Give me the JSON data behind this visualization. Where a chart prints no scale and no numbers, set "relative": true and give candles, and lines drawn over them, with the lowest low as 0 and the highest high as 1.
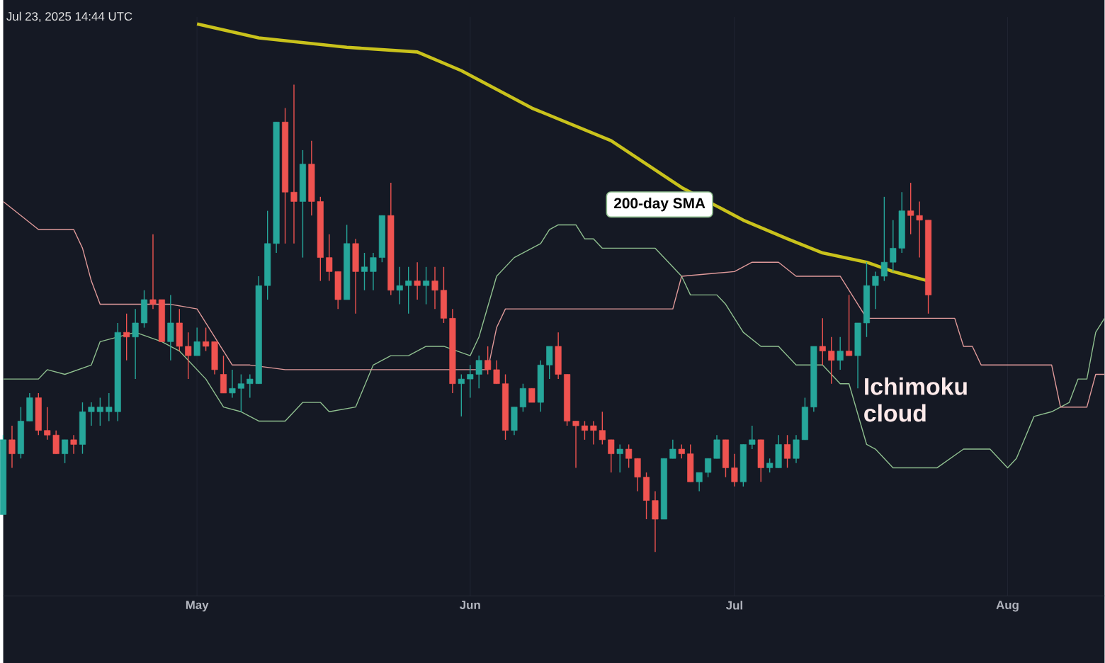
{
  "chart_data": {
    "type": "candlestick",
    "relative": true,
    "tick_labels": "x",
    "grid": "x",
    "xlim": [
      "2025-04-09",
      "2025-08-12"
    ],
    "xticks": [
      {
        "value": "2025-05-01",
        "label": "May"
      },
      {
        "value": "2025-06-01",
        "label": "Jun"
      },
      {
        "value": "2025-07-01",
        "label": "Jul"
      },
      {
        "value": "2025-08-01",
        "label": "Aug"
      }
    ],
    "colors": [
      "#26a69a",
      "#ef5350",
      "#26a69a",
      "#26a69a",
      "#ef5350",
      "#ef5350",
      "#ef5350",
      "#26a69a",
      "#ef5350",
      "#26a69a",
      "#26a69a",
      "#26a69a",
      "#26a69a",
      "#26a69a",
      "#ef5350",
      "#26a69a",
      "#26a69a",
      "#ef5350",
      "#ef5350",
      "#26a69a",
      "#ef5350",
      "#ef5350",
      "#26a69a",
      "#ef5350",
      "#ef5350",
      "#ef5350",
      "#26a69a",
      "#26a69a",
      "#26a69a",
      "#26a69a",
      "#26a69a",
      "#26a69a",
      "#ef5350",
      "#ef5350",
      "#26a69a",
      "#ef5350",
      "#ef5350",
      "#ef5350",
      "#ef5350",
      "#26a69a",
      "#ef5350",
      "#26a69a",
      "#26a69a",
      "#26a69a",
      "#ef5350",
      "#26a69a",
      "#26a69a",
      "#ef5350",
      "#26a69a",
      "#ef5350",
      "#ef5350",
      "#ef5350",
      "#26a69a",
      "#26a69a",
      "#26a69a",
      "#ef5350",
      "#ef5350",
      "#ef5350",
      "#26a69a",
      "#26a69a",
      "#ef5350",
      "#26a69a",
      "#26a69a",
      "#ef5350",
      "#ef5350",
      "#ef5350",
      "#ef5350",
      "#ef5350",
      "#ef5350",
      "#ef5350",
      "#26a69a",
      "#ef5350",
      "#ef5350",
      "#ef5350",
      "#ef5350",
      "#26a69a",
      "#26a69a",
      "#ef5350",
      "#ef5350",
      "#26a69a",
      "#26a69a",
      "#26a69a",
      "#ef5350",
      "#ef5350",
      "#26a69a",
      "#26a69a",
      "#ef5350",
      "#26a69a",
      "#26a69a",
      "#ef5350",
      "#26a69a",
      "#26a69a",
      "#26a69a",
      "#ef5350",
      "#ef5350",
      "#26a69a",
      "#ef5350",
      "#26a69a",
      "#26a69a",
      "#26a69a",
      "#26a69a",
      "#26a69a",
      "#26a69a",
      "#ef5350",
      "#ef5350",
      "#ef5350"
    ],
    "x": [
      "2025-04-09",
      "2025-04-10",
      "2025-04-11",
      "2025-04-12",
      "2025-04-13",
      "2025-04-14",
      "2025-04-15",
      "2025-04-16",
      "2025-04-17",
      "2025-04-18",
      "2025-04-19",
      "2025-04-20",
      "2025-04-21",
      "2025-04-22",
      "2025-04-23",
      "2025-04-24",
      "2025-04-25",
      "2025-04-26",
      "2025-04-27",
      "2025-04-28",
      "2025-04-29",
      "2025-04-30",
      "2025-05-01",
      "2025-05-02",
      "2025-05-03",
      "2025-05-04",
      "2025-05-05",
      "2025-05-06",
      "2025-05-07",
      "2025-05-08",
      "2025-05-09",
      "2025-05-10",
      "2025-05-11",
      "2025-05-12",
      "2025-05-13",
      "2025-05-14",
      "2025-05-15",
      "2025-05-16",
      "2025-05-17",
      "2025-05-18",
      "2025-05-19",
      "2025-05-20",
      "2025-05-21",
      "2025-05-22",
      "2025-05-23",
      "2025-05-24",
      "2025-05-25",
      "2025-05-26",
      "2025-05-27",
      "2025-05-28",
      "2025-05-29",
      "2025-05-30",
      "2025-05-31",
      "2025-06-01",
      "2025-06-02",
      "2025-06-03",
      "2025-06-04",
      "2025-06-05",
      "2025-06-06",
      "2025-06-07",
      "2025-06-08",
      "2025-06-09",
      "2025-06-10",
      "2025-06-11",
      "2025-06-12",
      "2025-06-13",
      "2025-06-14",
      "2025-06-15",
      "2025-06-16",
      "2025-06-17",
      "2025-06-18",
      "2025-06-19",
      "2025-06-20",
      "2025-06-21",
      "2025-06-22",
      "2025-06-23",
      "2025-06-24",
      "2025-06-25",
      "2025-06-26",
      "2025-06-27",
      "2025-06-28",
      "2025-06-29",
      "2025-06-30",
      "2025-07-01",
      "2025-07-02",
      "2025-07-03",
      "2025-07-04",
      "2025-07-05",
      "2025-07-06",
      "2025-07-07",
      "2025-07-08",
      "2025-07-09",
      "2025-07-10",
      "2025-07-11",
      "2025-07-12",
      "2025-07-13",
      "2025-07-14",
      "2025-07-15",
      "2025-07-16",
      "2025-07-17",
      "2025-07-18",
      "2025-07-19",
      "2025-07-20",
      "2025-07-21",
      "2025-07-22",
      "2025-07-23"
    ],
    "ohlc": [
      [
        0.08,
        0.25,
        0.08,
        0.24
      ],
      [
        0.24,
        0.27,
        0.18,
        0.21
      ],
      [
        0.21,
        0.31,
        0.2,
        0.28
      ],
      [
        0.28,
        0.34,
        0.28,
        0.33
      ],
      [
        0.33,
        0.34,
        0.25,
        0.26
      ],
      [
        0.26,
        0.31,
        0.24,
        0.25
      ],
      [
        0.25,
        0.26,
        0.21,
        0.21
      ],
      [
        0.21,
        0.24,
        0.19,
        0.24
      ],
      [
        0.24,
        0.25,
        0.21,
        0.23
      ],
      [
        0.23,
        0.32,
        0.21,
        0.3
      ],
      [
        0.3,
        0.32,
        0.27,
        0.31
      ],
      [
        0.3,
        0.33,
        0.27,
        0.31
      ],
      [
        0.3,
        0.34,
        0.28,
        0.31
      ],
      [
        0.3,
        0.49,
        0.28,
        0.47
      ],
      [
        0.47,
        0.51,
        0.41,
        0.46
      ],
      [
        0.46,
        0.52,
        0.37,
        0.49
      ],
      [
        0.49,
        0.56,
        0.48,
        0.54
      ],
      [
        0.54,
        0.68,
        0.52,
        0.53
      ],
      [
        0.54,
        0.54,
        0.45,
        0.45
      ],
      [
        0.45,
        0.55,
        0.41,
        0.49
      ],
      [
        0.49,
        0.52,
        0.43,
        0.44
      ],
      [
        0.44,
        0.47,
        0.37,
        0.42
      ],
      [
        0.42,
        0.48,
        0.42,
        0.45
      ],
      [
        0.45,
        0.48,
        0.43,
        0.44
      ],
      [
        0.45,
        0.45,
        0.38,
        0.39
      ],
      [
        0.38,
        0.42,
        0.34,
        0.34
      ],
      [
        0.34,
        0.39,
        0.33,
        0.35
      ],
      [
        0.35,
        0.38,
        0.3,
        0.36
      ],
      [
        0.36,
        0.38,
        0.33,
        0.37
      ],
      [
        0.36,
        0.59,
        0.36,
        0.57
      ],
      [
        0.57,
        0.73,
        0.54,
        0.66
      ],
      [
        0.66,
        0.92,
        0.64,
        0.92
      ],
      [
        0.92,
        0.95,
        0.66,
        0.77
      ],
      [
        0.77,
        1.0,
        0.66,
        0.75
      ],
      [
        0.75,
        0.86,
        0.63,
        0.83
      ],
      [
        0.83,
        0.88,
        0.72,
        0.75
      ],
      [
        0.75,
        0.76,
        0.58,
        0.63
      ],
      [
        0.63,
        0.68,
        0.58,
        0.6
      ],
      [
        0.6,
        0.6,
        0.52,
        0.54
      ],
      [
        0.54,
        0.7,
        0.54,
        0.66
      ],
      [
        0.66,
        0.67,
        0.51,
        0.6
      ],
      [
        0.6,
        0.64,
        0.56,
        0.61
      ],
      [
        0.6,
        0.64,
        0.56,
        0.63
      ],
      [
        0.63,
        0.72,
        0.62,
        0.72
      ],
      [
        0.72,
        0.79,
        0.55,
        0.56
      ],
      [
        0.56,
        0.61,
        0.53,
        0.57
      ],
      [
        0.57,
        0.61,
        0.51,
        0.58
      ],
      [
        0.58,
        0.62,
        0.54,
        0.57
      ],
      [
        0.57,
        0.61,
        0.53,
        0.58
      ],
      [
        0.58,
        0.61,
        0.52,
        0.56
      ],
      [
        0.56,
        0.61,
        0.49,
        0.5
      ],
      [
        0.5,
        0.52,
        0.34,
        0.36
      ],
      [
        0.36,
        0.38,
        0.29,
        0.37
      ],
      [
        0.37,
        0.4,
        0.33,
        0.38
      ],
      [
        0.38,
        0.42,
        0.35,
        0.41
      ],
      [
        0.41,
        0.44,
        0.38,
        0.39
      ],
      [
        0.39,
        0.41,
        0.36,
        0.36
      ],
      [
        0.36,
        0.38,
        0.24,
        0.26
      ],
      [
        0.26,
        0.31,
        0.25,
        0.31
      ],
      [
        0.31,
        0.36,
        0.3,
        0.35
      ],
      [
        0.35,
        0.35,
        0.32,
        0.32
      ],
      [
        0.32,
        0.41,
        0.3,
        0.4
      ],
      [
        0.4,
        0.44,
        0.37,
        0.44
      ],
      [
        0.44,
        0.47,
        0.37,
        0.38
      ],
      [
        0.38,
        0.38,
        0.27,
        0.28
      ],
      [
        0.28,
        0.28,
        0.18,
        0.27
      ],
      [
        0.27,
        0.28,
        0.24,
        0.26
      ],
      [
        0.27,
        0.28,
        0.23,
        0.26
      ],
      [
        0.26,
        0.3,
        0.23,
        0.24
      ],
      [
        0.24,
        0.24,
        0.17,
        0.21
      ],
      [
        0.21,
        0.23,
        0.17,
        0.22
      ],
      [
        0.22,
        0.23,
        0.18,
        0.2
      ],
      [
        0.2,
        0.2,
        0.13,
        0.16
      ],
      [
        0.16,
        0.17,
        0.07,
        0.11
      ],
      [
        0.11,
        0.13,
        0.0,
        0.07
      ],
      [
        0.07,
        0.2,
        0.07,
        0.2
      ],
      [
        0.2,
        0.24,
        0.2,
        0.22
      ],
      [
        0.22,
        0.23,
        0.2,
        0.21
      ],
      [
        0.21,
        0.23,
        0.15,
        0.15
      ],
      [
        0.15,
        0.17,
        0.13,
        0.17
      ],
      [
        0.17,
        0.2,
        0.16,
        0.2
      ],
      [
        0.2,
        0.25,
        0.2,
        0.24
      ],
      [
        0.24,
        0.24,
        0.16,
        0.18
      ],
      [
        0.18,
        0.21,
        0.14,
        0.15
      ],
      [
        0.15,
        0.23,
        0.14,
        0.23
      ],
      [
        0.23,
        0.27,
        0.22,
        0.24
      ],
      [
        0.24,
        0.24,
        0.15,
        0.18
      ],
      [
        0.18,
        0.2,
        0.17,
        0.19
      ],
      [
        0.18,
        0.25,
        0.18,
        0.23
      ],
      [
        0.23,
        0.25,
        0.18,
        0.2
      ],
      [
        0.2,
        0.25,
        0.19,
        0.24
      ],
      [
        0.24,
        0.33,
        0.24,
        0.31
      ],
      [
        0.31,
        0.44,
        0.3,
        0.44
      ],
      [
        0.44,
        0.5,
        0.4,
        0.43
      ],
      [
        0.43,
        0.46,
        0.36,
        0.41
      ],
      [
        0.41,
        0.46,
        0.39,
        0.43
      ],
      [
        0.43,
        0.55,
        0.42,
        0.42
      ],
      [
        0.42,
        0.49,
        0.35,
        0.49
      ],
      [
        0.49,
        0.62,
        0.46,
        0.57
      ],
      [
        0.57,
        0.6,
        0.52,
        0.59
      ],
      [
        0.59,
        0.76,
        0.58,
        0.62
      ],
      [
        0.62,
        0.71,
        0.6,
        0.65
      ],
      [
        0.65,
        0.77,
        0.64,
        0.73
      ],
      [
        0.73,
        0.79,
        0.68,
        0.72
      ],
      [
        0.72,
        0.75,
        0.63,
        0.71
      ],
      [
        0.71,
        0.71,
        0.51,
        0.55
      ]
    ],
    "series": [
      {
        "type": "line",
        "color": "#c9c21c",
        "x": [
          "2025-05-01",
          "2025-05-08",
          "2025-05-18",
          "2025-05-26",
          "2025-05-31",
          "2025-06-08",
          "2025-06-17",
          "2025-06-21",
          "2025-06-25",
          "2025-07-02",
          "2025-07-07",
          "2025-07-11",
          "2025-07-16",
          "2025-07-19",
          "2025-07-23"
        ],
        "values": [
          1.13,
          1.1,
          1.08,
          1.07,
          1.03,
          0.95,
          0.88,
          0.83,
          0.78,
          0.71,
          0.67,
          0.64,
          0.62,
          0.6,
          0.58
        ]
      },
      {
        "type": "line",
        "color": "#8fbf8f",
        "x": [
          "2025-04-09",
          "2025-04-13",
          "2025-04-14",
          "2025-04-16",
          "2025-04-19",
          "2025-04-20",
          "2025-04-24",
          "2025-04-27",
          "2025-04-29",
          "2025-05-02",
          "2025-05-04",
          "2025-05-06",
          "2025-05-08",
          "2025-05-11",
          "2025-05-13",
          "2025-05-15",
          "2025-05-16",
          "2025-05-19",
          "2025-05-21",
          "2025-05-23",
          "2025-05-25",
          "2025-05-27",
          "2025-05-29",
          "2025-06-01",
          "2025-06-02",
          "2025-06-04",
          "2025-06-06",
          "2025-06-09",
          "2025-06-10",
          "2025-06-11",
          "2025-06-13",
          "2025-06-14",
          "2025-06-15",
          "2025-06-16",
          "2025-06-22",
          "2025-06-24",
          "2025-06-25",
          "2025-06-26",
          "2025-06-29",
          "2025-06-30",
          "2025-07-02",
          "2025-07-04",
          "2025-07-06",
          "2025-07-08",
          "2025-07-11",
          "2025-07-13",
          "2025-07-14",
          "2025-07-16",
          "2025-07-17",
          "2025-07-19",
          "2025-07-24",
          "2025-07-27",
          "2025-07-30",
          "2025-08-01",
          "2025-08-02",
          "2025-08-04",
          "2025-08-06",
          "2025-08-08",
          "2025-08-09",
          "2025-08-10",
          "2025-08-11",
          "2025-08-12"
        ],
        "values": [
          0.37,
          0.37,
          0.39,
          0.38,
          0.4,
          0.45,
          0.47,
          0.45,
          0.43,
          0.37,
          0.31,
          0.3,
          0.28,
          0.28,
          0.32,
          0.32,
          0.3,
          0.31,
          0.4,
          0.42,
          0.42,
          0.44,
          0.44,
          0.42,
          0.46,
          0.59,
          0.63,
          0.66,
          0.69,
          0.7,
          0.7,
          0.67,
          0.67,
          0.65,
          0.65,
          0.61,
          0.59,
          0.55,
          0.55,
          0.53,
          0.47,
          0.44,
          0.44,
          0.4,
          0.4,
          0.36,
          0.36,
          0.23,
          0.22,
          0.18,
          0.18,
          0.22,
          0.22,
          0.18,
          0.2,
          0.29,
          0.3,
          0.32,
          0.37,
          0.37,
          0.47,
          0.5
        ]
      },
      {
        "type": "line",
        "color": "#e09a9a",
        "x": [
          "2025-04-09",
          "2025-04-11",
          "2025-04-13",
          "2025-04-17",
          "2025-04-18",
          "2025-04-19",
          "2025-04-20",
          "2025-04-28",
          "2025-05-01",
          "2025-05-03",
          "2025-05-05",
          "2025-05-07",
          "2025-05-11",
          "2025-06-03",
          "2025-06-04",
          "2025-06-05",
          "2025-06-24",
          "2025-06-25",
          "2025-07-01",
          "2025-07-03",
          "2025-07-06",
          "2025-07-08",
          "2025-07-13",
          "2025-07-16",
          "2025-07-26",
          "2025-07-27",
          "2025-07-28",
          "2025-07-29",
          "2025-08-06",
          "2025-08-07",
          "2025-08-10",
          "2025-08-11",
          "2025-08-12"
        ],
        "values": [
          0.75,
          0.72,
          0.69,
          0.69,
          0.65,
          0.58,
          0.53,
          0.53,
          0.52,
          0.46,
          0.4,
          0.4,
          0.39,
          0.39,
          0.48,
          0.52,
          0.52,
          0.59,
          0.6,
          0.62,
          0.62,
          0.59,
          0.59,
          0.5,
          0.5,
          0.44,
          0.44,
          0.4,
          0.4,
          0.31,
          0.31,
          0.38,
          0.38
        ]
      }
    ],
    "annotations": [
      "Jul 23, 2025 14:44 UTC",
      "200-day SMA",
      "Ichimoku cloud"
    ]
  }
}
